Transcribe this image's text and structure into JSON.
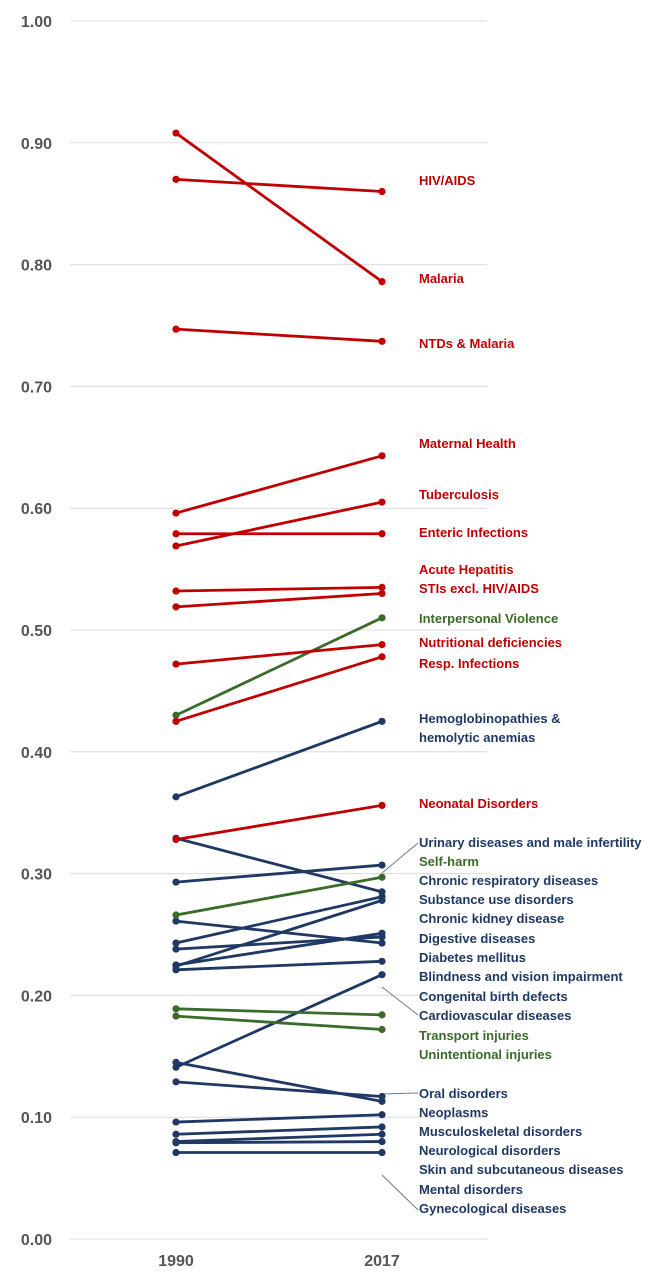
{
  "chart_data": {
    "type": "line",
    "x": [
      "1990",
      "2017"
    ],
    "ylim": [
      0,
      1
    ],
    "yticks": [
      "0.00",
      "0.10",
      "0.20",
      "0.30",
      "0.40",
      "0.50",
      "0.60",
      "0.70",
      "0.80",
      "0.90",
      "1.00"
    ],
    "grid": true,
    "colors": {
      "communicable": "#c00000",
      "injuries": "#3b6b2b",
      "ncd": "#1f3864",
      "tick": "#555555",
      "grid": "#dcdcdc"
    },
    "series": [
      {
        "name": "HIV/AIDS",
        "group": "communicable",
        "values": [
          0.87,
          0.86
        ]
      },
      {
        "name": "Malaria",
        "group": "communicable",
        "values": [
          0.908,
          0.786
        ]
      },
      {
        "name": "NTDs & Malaria",
        "group": "communicable",
        "values": [
          0.747,
          0.737
        ]
      },
      {
        "name": "Maternal Health",
        "group": "communicable",
        "values": [
          0.596,
          0.643
        ]
      },
      {
        "name": "Tuberculosis",
        "group": "communicable",
        "values": [
          0.569,
          0.605
        ]
      },
      {
        "name": "Enteric Infections",
        "group": "communicable",
        "values": [
          0.579,
          0.579
        ]
      },
      {
        "name": "Acute Hepatitis",
        "group": "communicable",
        "values": [
          0.532,
          0.535
        ]
      },
      {
        "name": "STIs excl. HIV/AIDS",
        "group": "communicable",
        "values": [
          0.519,
          0.53
        ]
      },
      {
        "name": "Interpersonal Violence",
        "group": "injuries",
        "values": [
          0.43,
          0.51
        ]
      },
      {
        "name": "Nutritional deficiencies",
        "group": "communicable",
        "values": [
          0.472,
          0.488
        ]
      },
      {
        "name": "Resp. Infections",
        "group": "communicable",
        "values": [
          0.425,
          0.478
        ]
      },
      {
        "name": "Hemoglobinopathies & hemolytic anemias",
        "group": "ncd",
        "values": [
          0.363,
          0.425
        ]
      },
      {
        "name": "Neonatal Disorders",
        "group": "communicable",
        "values": [
          0.328,
          0.356
        ]
      },
      {
        "name": "Urinary diseases and male infertility",
        "group": "ncd",
        "values": [
          0.329,
          0.285
        ]
      },
      {
        "name": "Self-harm",
        "group": "injuries",
        "values": [
          0.266,
          0.297
        ]
      },
      {
        "name": "Chronic respiratory diseases",
        "group": "ncd",
        "values": [
          0.293,
          0.307
        ]
      },
      {
        "name": "Substance use disorders",
        "group": "ncd",
        "values": [
          0.261,
          0.243
        ]
      },
      {
        "name": "Chronic kidney disease",
        "group": "ncd",
        "values": [
          0.243,
          0.281
        ]
      },
      {
        "name": "Digestive diseases",
        "group": "ncd",
        "values": [
          0.238,
          0.248
        ]
      },
      {
        "name": "Diabetes mellitus",
        "group": "ncd",
        "values": [
          0.224,
          0.278
        ]
      },
      {
        "name": "Blindness and vision impairment",
        "group": "ncd",
        "values": [
          0.221,
          0.228
        ]
      },
      {
        "name": "Congenital birth defects",
        "group": "ncd",
        "values": [
          0.225,
          0.251
        ]
      },
      {
        "name": "Cardiovascular diseases",
        "group": "ncd",
        "values": [
          0.141,
          0.217
        ]
      },
      {
        "name": "Transport injuries",
        "group": "injuries",
        "values": [
          0.189,
          0.184
        ]
      },
      {
        "name": "Unintentional injuries",
        "group": "injuries",
        "values": [
          0.183,
          0.172
        ]
      },
      {
        "name": "Oral disorders",
        "group": "ncd",
        "values": [
          0.145,
          0.113
        ]
      },
      {
        "name": "Neoplasms",
        "group": "ncd",
        "values": [
          0.129,
          0.117
        ]
      },
      {
        "name": "Musculoskeletal disorders",
        "group": "ncd",
        "values": [
          0.096,
          0.102
        ]
      },
      {
        "name": "Neurological disorders",
        "group": "ncd",
        "values": [
          0.086,
          0.092
        ]
      },
      {
        "name": "Skin and subcutaneous diseases",
        "group": "ncd",
        "values": [
          0.08,
          0.086
        ]
      },
      {
        "name": "Mental disorders",
        "group": "ncd",
        "values": [
          0.079,
          0.08
        ]
      },
      {
        "name": "Gynecological diseases",
        "group": "ncd",
        "values": [
          0.071,
          0.071
        ]
      }
    ],
    "labels": [
      {
        "lines": [
          "HIV/AIDS"
        ],
        "group": "communicable"
      },
      {
        "lines": [
          "Malaria"
        ],
        "group": "communicable"
      },
      {
        "lines": [
          "NTDs & Malaria"
        ],
        "group": "communicable"
      },
      {
        "lines": [
          "Maternal Health"
        ],
        "group": "communicable"
      },
      {
        "lines": [
          "Tuberculosis"
        ],
        "group": "communicable"
      },
      {
        "lines": [
          "Enteric Infections"
        ],
        "group": "communicable"
      },
      {
        "lines": [
          "Acute Hepatitis"
        ],
        "group": "communicable"
      },
      {
        "lines": [
          "STIs excl. HIV/AIDS"
        ],
        "group": "communicable"
      },
      {
        "lines": [
          "Interpersonal Violence"
        ],
        "group": "injuries"
      },
      {
        "lines": [
          "Nutritional deficiencies"
        ],
        "group": "communicable"
      },
      {
        "lines": [
          "Resp. Infections"
        ],
        "group": "communicable"
      },
      {
        "lines": [
          "Hemoglobinopathies &",
          "hemolytic anemias"
        ],
        "group": "ncd"
      },
      {
        "lines": [
          "Neonatal Disorders"
        ],
        "group": "communicable"
      },
      {
        "lines": [
          "Urinary diseases and male infertility"
        ],
        "group": "ncd"
      },
      {
        "lines": [
          "Self-harm"
        ],
        "group": "injuries"
      },
      {
        "lines": [
          "Chronic respiratory diseases"
        ],
        "group": "ncd"
      },
      {
        "lines": [
          "Substance use disorders"
        ],
        "group": "ncd"
      },
      {
        "lines": [
          "Chronic kidney disease"
        ],
        "group": "ncd"
      },
      {
        "lines": [
          "Digestive diseases"
        ],
        "group": "ncd"
      },
      {
        "lines": [
          "Diabetes mellitus"
        ],
        "group": "ncd"
      },
      {
        "lines": [
          "Blindness and vision impairment"
        ],
        "group": "ncd"
      },
      {
        "lines": [
          "Congenital birth defects"
        ],
        "group": "ncd"
      },
      {
        "lines": [
          "Cardiovascular diseases"
        ],
        "group": "ncd"
      },
      {
        "lines": [
          "Transport injuries"
        ],
        "group": "injuries"
      },
      {
        "lines": [
          "Unintentional injuries"
        ],
        "group": "injuries"
      },
      {
        "lines": [
          "Oral disorders"
        ],
        "group": "ncd"
      },
      {
        "lines": [
          "Neoplasms"
        ],
        "group": "ncd"
      },
      {
        "lines": [
          "Musculoskeletal disorders"
        ],
        "group": "ncd"
      },
      {
        "lines": [
          "Neurological disorders"
        ],
        "group": "ncd"
      },
      {
        "lines": [
          "Skin and subcutaneous diseases"
        ],
        "group": "ncd"
      },
      {
        "lines": [
          "Mental disorders"
        ],
        "group": "ncd"
      },
      {
        "lines": [
          "Gynecological diseases"
        ],
        "group": "ncd"
      }
    ]
  }
}
